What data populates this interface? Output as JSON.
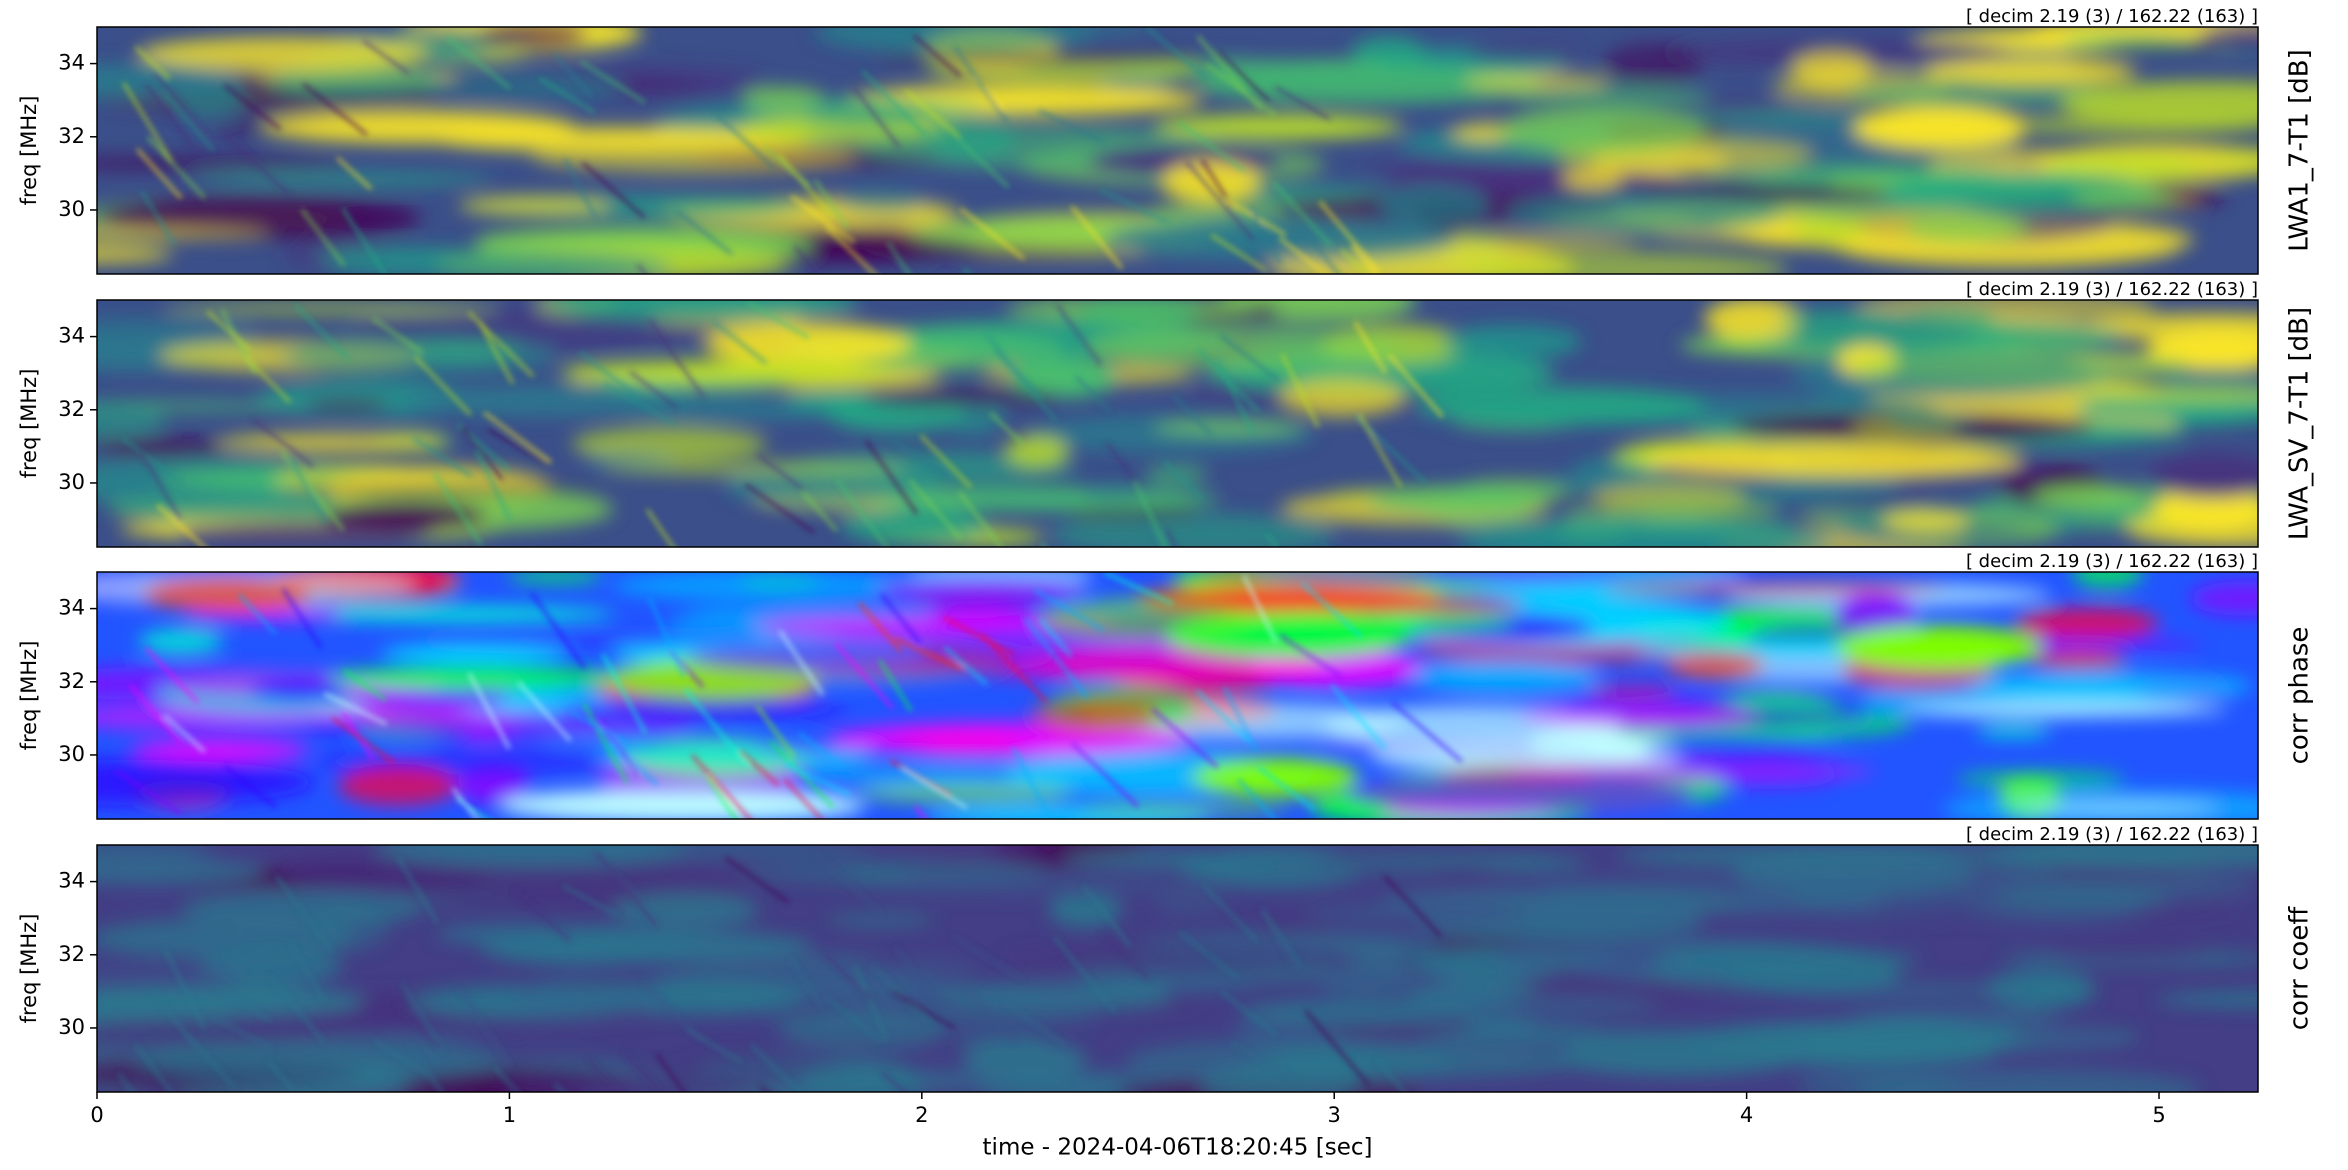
{
  "chart_data": [
    {
      "type": "heatmap",
      "colormap": "viridis",
      "title": "LWA1_7-T1 [dB]",
      "annotation": "[ decim 2.19 (3) / 162.22 (163) ]",
      "ylabel": "freq [MHz]",
      "xlim": [
        0,
        5.24
      ],
      "ylim": [
        28.25,
        35
      ],
      "yticks": [
        30,
        32,
        34
      ]
    },
    {
      "type": "heatmap",
      "colormap": "viridis",
      "title": "LWA_SV_7-T1 [dB]",
      "annotation": "[ decim 2.19 (3) / 162.22 (163) ]",
      "ylabel": "freq [MHz]",
      "xlim": [
        0,
        5.24
      ],
      "ylim": [
        28.25,
        35
      ],
      "yticks": [
        30,
        32,
        34
      ]
    },
    {
      "type": "heatmap",
      "colormap": "hsv",
      "title": "corr phase",
      "annotation": "[ decim 2.19 (3) / 162.22 (163) ]",
      "ylabel": "freq [MHz]",
      "xlim": [
        0,
        5.24
      ],
      "ylim": [
        28.25,
        35
      ],
      "yticks": [
        30,
        32,
        34
      ]
    },
    {
      "type": "heatmap",
      "colormap": "viridis-dim",
      "title": "corr coeff",
      "annotation": "[ decim 2.19 (3) / 162.22 (163) ]",
      "ylabel": "freq [MHz]",
      "xlim": [
        0,
        5.24
      ],
      "ylim": [
        28.25,
        35
      ],
      "yticks": [
        30,
        32,
        34
      ],
      "xticks": [
        0,
        1,
        2,
        3,
        4,
        5
      ],
      "xlabel": "time - 2024-04-06T18:20:45 [sec]"
    }
  ]
}
